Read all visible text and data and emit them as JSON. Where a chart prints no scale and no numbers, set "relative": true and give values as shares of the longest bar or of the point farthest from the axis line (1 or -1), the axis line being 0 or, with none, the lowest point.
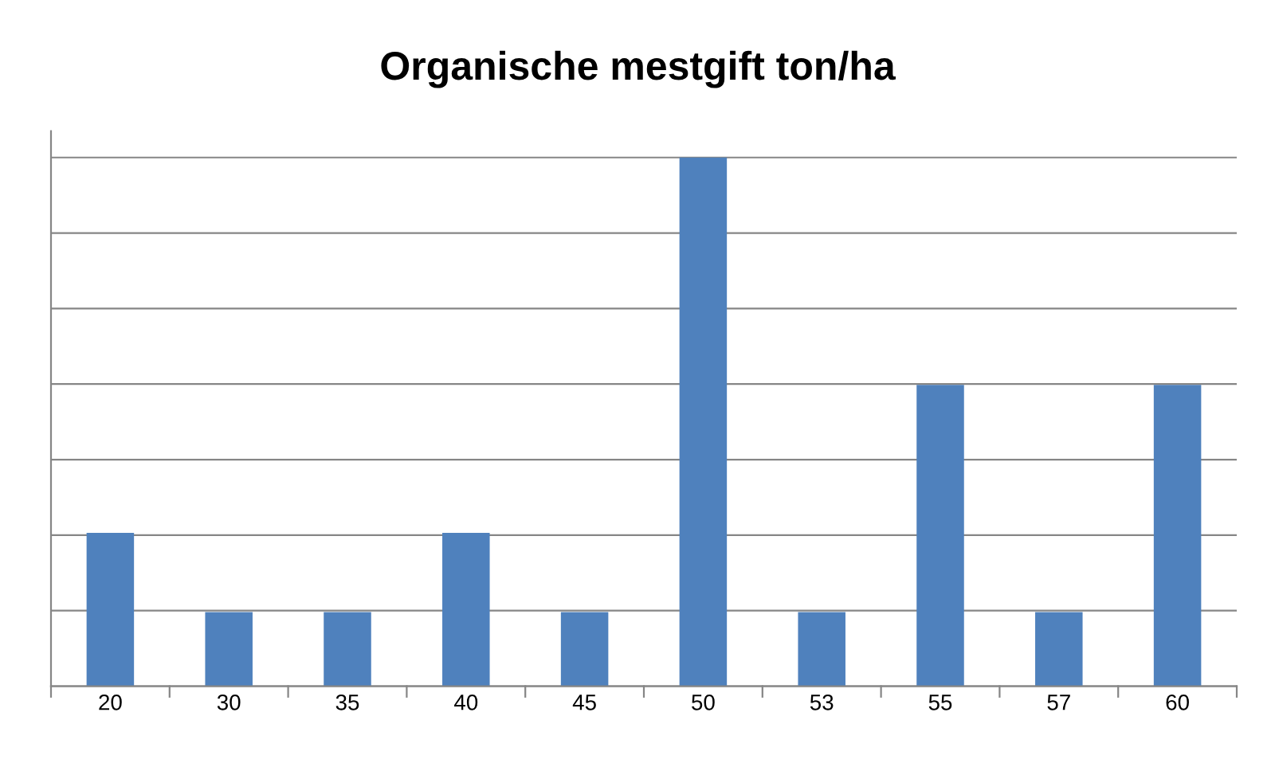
{
  "chart_data": {
    "type": "bar",
    "title": "Organische mestgift ton/ha",
    "categories": [
      "20",
      "30",
      "35",
      "40",
      "45",
      "50",
      "53",
      "55",
      "57",
      "60"
    ],
    "values": [
      0.29,
      0.14,
      0.14,
      0.29,
      0.14,
      1,
      0.14,
      0.57,
      0.14,
      0.57
    ],
    "color": "#4f81bd",
    "relative": true,
    "grid": "y",
    "legend": false
  }
}
